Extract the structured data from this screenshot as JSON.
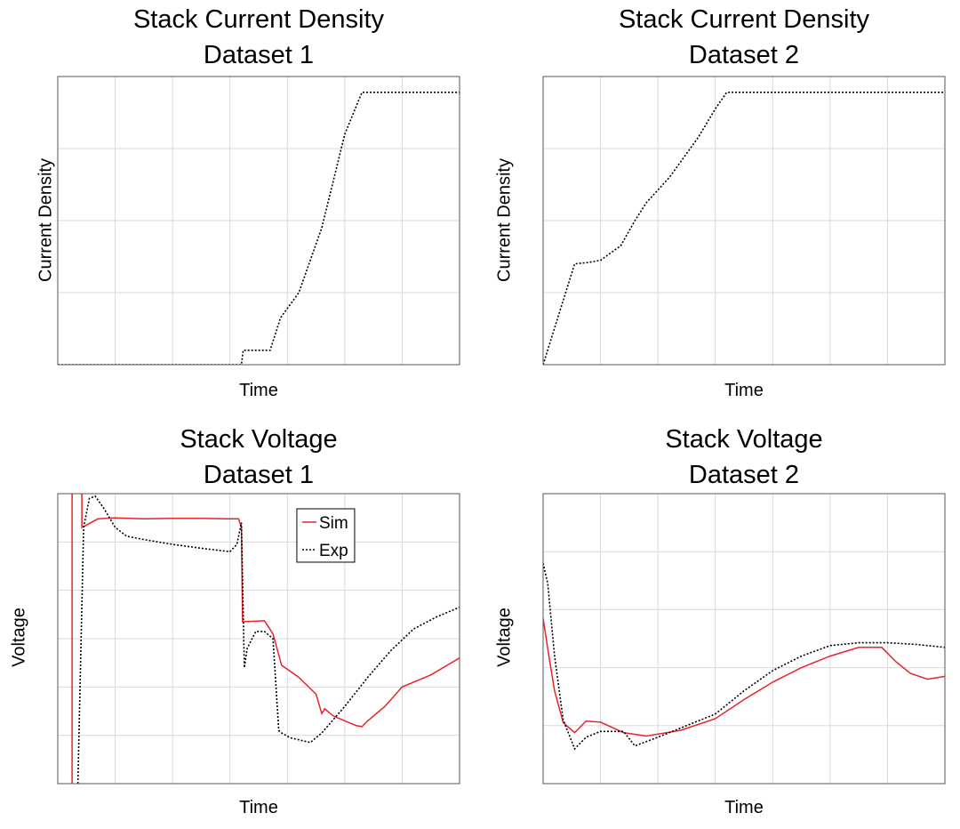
{
  "chart_data": [
    {
      "type": "line",
      "title": "Stack Current Density",
      "subtitle": "Dataset 1",
      "xlabel": "Time",
      "ylabel": "Current Density",
      "xlim": [
        0,
        7
      ],
      "ylim": [
        0,
        4
      ],
      "grid": true,
      "series": [
        {
          "style": "dotted",
          "color": "#000000",
          "x": [
            0,
            3.2,
            3.23,
            3.7,
            3.8,
            3.88,
            4.2,
            4.6,
            5.0,
            5.3,
            7.0
          ],
          "y": [
            0,
            0,
            0.2,
            0.2,
            0.45,
            0.65,
            1.0,
            1.9,
            3.2,
            3.78,
            3.78
          ]
        }
      ]
    },
    {
      "type": "line",
      "title": "Stack Current Density",
      "subtitle": "Dataset 2",
      "xlabel": "Time",
      "ylabel": "Current Density",
      "xlim": [
        0,
        7
      ],
      "ylim": [
        0,
        4
      ],
      "grid": true,
      "series": [
        {
          "style": "dotted",
          "color": "#000000",
          "x": [
            0,
            0.55,
            0.8,
            1.0,
            1.35,
            1.6,
            1.8,
            2.2,
            2.7,
            3.0,
            3.2,
            7.0
          ],
          "y": [
            0,
            1.4,
            1.42,
            1.45,
            1.65,
            2.0,
            2.25,
            2.6,
            3.15,
            3.55,
            3.78,
            3.78
          ]
        }
      ]
    },
    {
      "type": "line",
      "title": "Stack Voltage",
      "subtitle": "Dataset 1",
      "xlabel": "Time",
      "ylabel": "Voltage",
      "xlim": [
        0,
        7
      ],
      "ylim": [
        0,
        6
      ],
      "grid": true,
      "legend": {
        "position": "top-center",
        "entries": [
          "Sim",
          "Exp"
        ]
      },
      "series": [
        {
          "name": "Sim",
          "style": "solid",
          "color": "#e8232a",
          "x": [
            0.25,
            0.25,
            0.42,
            0.42,
            0.5,
            0.7,
            1.0,
            1.5,
            2.0,
            2.5,
            3.0,
            3.15,
            3.2,
            3.22,
            3.6,
            3.75,
            3.9,
            4.2,
            4.5,
            4.6,
            4.65,
            4.8,
            5.0,
            5.2,
            5.3,
            5.4,
            5.7,
            6.0,
            6.5,
            7.0
          ],
          "y": [
            0,
            6.1,
            6.1,
            5.3,
            5.35,
            5.48,
            5.5,
            5.48,
            5.49,
            5.49,
            5.48,
            5.48,
            5.3,
            3.35,
            3.37,
            3.1,
            2.45,
            2.2,
            1.85,
            1.45,
            1.55,
            1.4,
            1.3,
            1.2,
            1.18,
            1.3,
            1.6,
            2.0,
            2.25,
            2.6
          ]
        },
        {
          "name": "Exp",
          "style": "dotted",
          "color": "#000000",
          "x": [
            0.35,
            0.45,
            0.55,
            0.65,
            0.8,
            1.0,
            1.2,
            1.5,
            2.0,
            2.5,
            3.0,
            3.12,
            3.2,
            3.25,
            3.3,
            3.45,
            3.6,
            3.75,
            3.85,
            3.9,
            4.05,
            4.4,
            4.6,
            5.0,
            5.4,
            5.8,
            6.2,
            6.6,
            7.0
          ],
          "y": [
            0,
            5.3,
            5.9,
            5.95,
            5.7,
            5.3,
            5.12,
            5.05,
            4.95,
            4.87,
            4.8,
            4.95,
            5.4,
            2.4,
            2.8,
            3.15,
            3.15,
            3.0,
            1.1,
            1.05,
            0.95,
            0.85,
            1.05,
            1.6,
            2.2,
            2.75,
            3.2,
            3.45,
            3.65
          ]
        }
      ]
    },
    {
      "type": "line",
      "title": "Stack Voltage",
      "subtitle": "Dataset 2",
      "xlabel": "Time",
      "ylabel": "Voltage",
      "xlim": [
        0,
        7
      ],
      "ylim": [
        0,
        5
      ],
      "grid": true,
      "series": [
        {
          "name": "Sim",
          "style": "solid",
          "color": "#e8232a",
          "x": [
            0,
            0.1,
            0.2,
            0.35,
            0.55,
            0.75,
            1.0,
            1.4,
            1.8,
            2.4,
            3.0,
            3.5,
            4.0,
            4.5,
            5.0,
            5.5,
            5.9,
            6.15,
            6.4,
            6.7,
            7.0
          ],
          "y": [
            2.85,
            2.2,
            1.6,
            1.05,
            0.88,
            1.08,
            1.06,
            0.88,
            0.82,
            0.92,
            1.12,
            1.45,
            1.75,
            2.0,
            2.2,
            2.35,
            2.35,
            2.1,
            1.9,
            1.8,
            1.85
          ]
        },
        {
          "name": "Exp",
          "style": "dotted",
          "color": "#000000",
          "x": [
            0,
            0.08,
            0.2,
            0.35,
            0.55,
            0.75,
            1.0,
            1.4,
            1.6,
            2.0,
            2.5,
            3.0,
            3.5,
            4.0,
            4.5,
            5.0,
            5.5,
            6.0,
            6.5,
            7.0
          ],
          "y": [
            3.8,
            3.45,
            2.2,
            1.1,
            0.6,
            0.8,
            0.9,
            0.9,
            0.65,
            0.8,
            1.0,
            1.2,
            1.6,
            1.95,
            2.2,
            2.38,
            2.43,
            2.43,
            2.4,
            2.35
          ]
        }
      ]
    }
  ]
}
